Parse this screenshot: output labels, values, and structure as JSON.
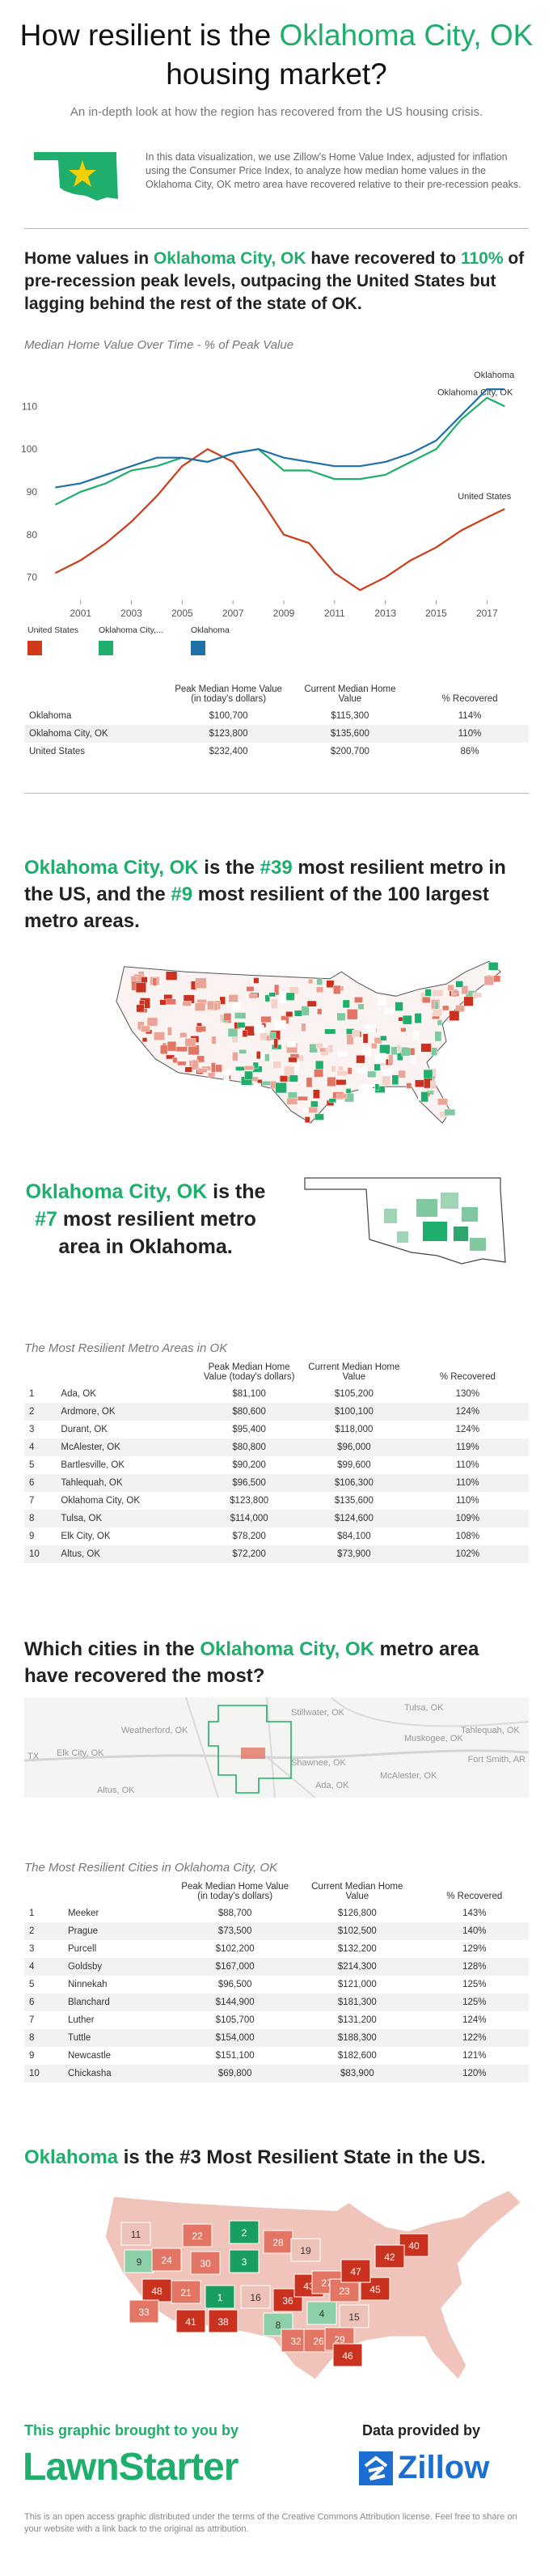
{
  "header": {
    "title_parts": [
      "How resilient is the ",
      "Oklahoma City, OK",
      " housing market?"
    ],
    "subtitle": "An in-depth look at how the region has recovered from the US housing crisis.",
    "intro": "In this data visualization, we use Zillow's Home Value Index, adjusted for inflation using the Consumer Price Index, to analyze how median home values in the Oklahoma City, OK metro area have recovered relative to their pre-recession peaks."
  },
  "headline_1": [
    "Home values in ",
    "Oklahoma City, OK",
    " have recovered to ",
    "110%",
    " of pre-recession peak levels, outpacing the United States but lagging behind the rest of the state of OK."
  ],
  "chart_data": {
    "type": "line",
    "title": "Median Home Value Over Time - % of Peak Value",
    "x": [
      2000,
      2001,
      2002,
      2003,
      2004,
      2005,
      2006,
      2007,
      2008,
      2009,
      2010,
      2011,
      2012,
      2013,
      2014,
      2015,
      2016,
      2017,
      2017.7
    ],
    "xlim": [
      1999.8,
      2018.2
    ],
    "xticks": [
      2001,
      2003,
      2005,
      2007,
      2009,
      2011,
      2013,
      2015,
      2017
    ],
    "ylim": [
      65,
      118
    ],
    "yticks": [
      70,
      80,
      90,
      100,
      110
    ],
    "series": [
      {
        "name": "United States",
        "color": "#cf3a1a",
        "values": [
          71,
          74,
          78,
          83,
          89,
          96,
          100,
          97,
          89,
          80,
          78,
          71,
          67,
          70,
          74,
          77,
          81,
          84,
          86
        ]
      },
      {
        "name": "Oklahoma City, OK",
        "color": "#1fae6b",
        "values": [
          87,
          90,
          92,
          95,
          96,
          98,
          97,
          99,
          100,
          95,
          95,
          93,
          93,
          94,
          97,
          100,
          107,
          112,
          110
        ]
      },
      {
        "name": "Oklahoma",
        "color": "#1f6fa8",
        "values": [
          91,
          92,
          94,
          96,
          98,
          98,
          97,
          99,
          100,
          98,
          97,
          96,
          96,
          97,
          99,
          102,
          108,
          114,
          114
        ]
      }
    ],
    "legend_labels": [
      "United States",
      "Oklahoma City,...",
      "Oklahoma"
    ]
  },
  "table_1": {
    "headers": [
      "Peak Median Home Value (in today's dollars)",
      "Current Median Home Value",
      "% Recovered"
    ],
    "rows": [
      [
        "Oklahoma",
        "$100,700",
        "$115,300",
        "114%"
      ],
      [
        "Oklahoma City, OK",
        "$123,800",
        "$135,600",
        "110%"
      ],
      [
        "United States",
        "$232,400",
        "$200,700",
        "86%"
      ]
    ]
  },
  "headline_2": [
    "Oklahoma City, OK",
    " is the ",
    "#39",
    " most resilient metro in the US, and the ",
    "#9",
    " most resilient of the 100 largest metro areas."
  ],
  "headline_3": [
    "Oklahoma City, OK",
    " is the ",
    "#7",
    " most resilient metro area in Oklahoma."
  ],
  "table_2": {
    "title": "The Most Resilient Metro Areas in OK",
    "headers": [
      "Peak Median Home Value (today's dollars)",
      "Current Median Home Value",
      "% Recovered"
    ],
    "rows": [
      [
        "1",
        "Ada, OK",
        "$81,100",
        "$105,200",
        "130%"
      ],
      [
        "2",
        "Ardmore, OK",
        "$80,600",
        "$100,100",
        "124%"
      ],
      [
        "3",
        "Durant, OK",
        "$95,400",
        "$118,000",
        "124%"
      ],
      [
        "4",
        "McAlester, OK",
        "$80,800",
        "$96,000",
        "119%"
      ],
      [
        "5",
        "Bartlesville, OK",
        "$90,200",
        "$99,600",
        "110%"
      ],
      [
        "6",
        "Tahlequah, OK",
        "$96,500",
        "$106,300",
        "110%"
      ],
      [
        "7",
        "Oklahoma City, OK",
        "$123,800",
        "$135,600",
        "110%"
      ],
      [
        "8",
        "Tulsa, OK",
        "$114,000",
        "$124,600",
        "109%"
      ],
      [
        "9",
        "Elk City, OK",
        "$78,200",
        "$84,100",
        "108%"
      ],
      [
        "10",
        "Altus, OK",
        "$72,200",
        "$73,900",
        "102%"
      ]
    ]
  },
  "headline_4": [
    "Which cities in the ",
    "Oklahoma City, OK",
    " metro area have recovered the most?"
  ],
  "metro_map": {
    "labels": [
      "Tulsa, OK",
      "Stillwater, OK",
      "Tahlequah, OK",
      "Muskogee, OK",
      "Weatherford, OK",
      "Elk City, OK",
      "TX",
      "Shawnee, OK",
      "McAlester, OK",
      "Ada, OK",
      "Altus, OK",
      "Fort Smith, AR"
    ]
  },
  "table_3": {
    "title": "The Most Resilient Cities in Oklahoma City, OK",
    "headers": [
      "Peak Median Home Value (in today's dollars)",
      "Current Median Home Value",
      "% Recovered"
    ],
    "rows": [
      [
        "1",
        "Meeker",
        "$88,700",
        "$126,800",
        "143%"
      ],
      [
        "2",
        "Prague",
        "$73,500",
        "$102,500",
        "140%"
      ],
      [
        "3",
        "Purcell",
        "$102,200",
        "$132,200",
        "129%"
      ],
      [
        "4",
        "Goldsby",
        "$167,000",
        "$214,300",
        "128%"
      ],
      [
        "5",
        "Ninnekah",
        "$96,500",
        "$121,000",
        "125%"
      ],
      [
        "6",
        "Blanchard",
        "$144,900",
        "$181,300",
        "125%"
      ],
      [
        "7",
        "Luther",
        "$105,700",
        "$131,200",
        "124%"
      ],
      [
        "8",
        "Tuttle",
        "$154,000",
        "$188,300",
        "122%"
      ],
      [
        "9",
        "Newcastle",
        "$151,100",
        "$182,600",
        "121%"
      ],
      [
        "10",
        "Chickasha",
        "$69,800",
        "$83,900",
        "120%"
      ]
    ]
  },
  "headline_5": [
    "Oklahoma",
    " is the #3 Most Resilient State in the US."
  ],
  "state_map": {
    "ranks": [
      11,
      22,
      2,
      28,
      9,
      24,
      3,
      19,
      40,
      48,
      21,
      1,
      16,
      36,
      43,
      27,
      23,
      45,
      33,
      41,
      38,
      8,
      32,
      26,
      29,
      30,
      4,
      15,
      47,
      46,
      42
    ]
  },
  "footer": {
    "brought_by": "This graphic brought to you by",
    "brand": "LawnStarter",
    "data_by": "Data provided by",
    "data_brand": "Zillow",
    "license": "This is an open access graphic distributed under the terms of the Creative Commons Attribution license. Feel free to share on your website with a link back to the original as attribution."
  }
}
